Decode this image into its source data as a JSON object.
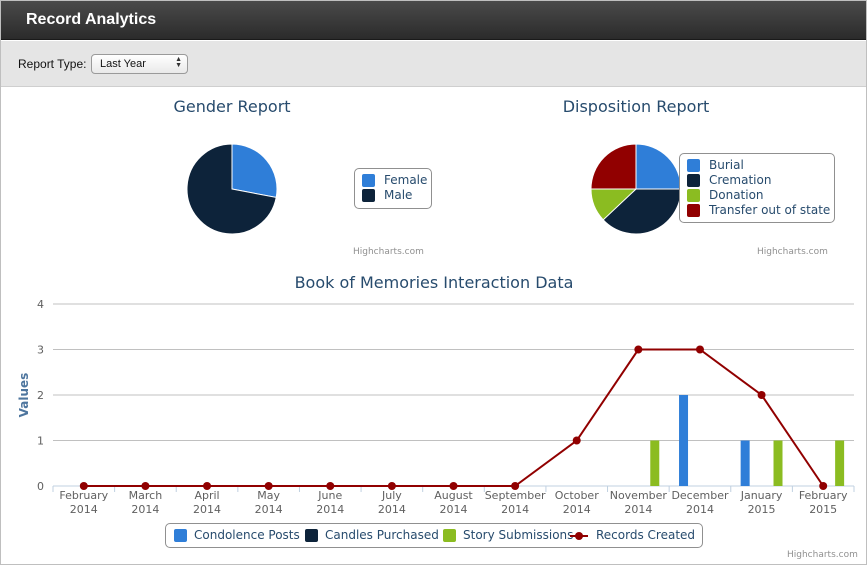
{
  "window": {
    "title": "Record Analytics"
  },
  "toolbar": {
    "report_type_label": "Report Type:",
    "report_type_value": "Last Year"
  },
  "gender_chart": {
    "title": "Gender Report",
    "credit": "Highcharts.com",
    "chart_data": {
      "type": "pie",
      "title": "Gender Report",
      "slices": [
        {
          "name": "Female",
          "value": 28,
          "color": "#2f7ed8"
        },
        {
          "name": "Male",
          "value": 72,
          "color": "#0d233a"
        }
      ]
    }
  },
  "disposition_chart": {
    "title": "Disposition Report",
    "credit": "Highcharts.com",
    "chart_data": {
      "type": "pie",
      "title": "Disposition Report",
      "slices": [
        {
          "name": "Burial",
          "value": 25,
          "color": "#2f7ed8"
        },
        {
          "name": "Cremation",
          "value": 38,
          "color": "#0d233a"
        },
        {
          "name": "Donation",
          "value": 12,
          "color": "#8bbc21"
        },
        {
          "name": "Transfer out of state",
          "value": 25,
          "color": "#910000"
        }
      ]
    }
  },
  "interaction_chart": {
    "title": "Book of Memories Interaction Data",
    "credit": "Highcharts.com",
    "chart_data": {
      "type": "bar",
      "title": "Book of Memories Interaction Data",
      "ylabel": "Values",
      "ylim": [
        0,
        4
      ],
      "yticks": [
        "0",
        "1",
        "2",
        "3",
        "4"
      ],
      "categories": [
        [
          "February",
          "2014"
        ],
        [
          "March",
          "2014"
        ],
        [
          "April",
          "2014"
        ],
        [
          "May",
          "2014"
        ],
        [
          "June",
          "2014"
        ],
        [
          "July",
          "2014"
        ],
        [
          "August",
          "2014"
        ],
        [
          "September",
          "2014"
        ],
        [
          "October",
          "2014"
        ],
        [
          "November",
          "2014"
        ],
        [
          "December",
          "2014"
        ],
        [
          "January",
          "2015"
        ],
        [
          "February",
          "2015"
        ]
      ],
      "series": [
        {
          "name": "Condolence Posts",
          "type": "column",
          "color": "#2f7ed8",
          "values": [
            0,
            0,
            0,
            0,
            0,
            0,
            0,
            0,
            0,
            0,
            2,
            1,
            0
          ]
        },
        {
          "name": "Candles Purchased",
          "type": "column",
          "color": "#0d233a",
          "values": [
            0,
            0,
            0,
            0,
            0,
            0,
            0,
            0,
            0,
            0,
            0,
            0,
            0
          ]
        },
        {
          "name": "Story Submissions",
          "type": "column",
          "color": "#8bbc21",
          "values": [
            0,
            0,
            0,
            0,
            0,
            0,
            0,
            0,
            0,
            1,
            0,
            1,
            1
          ]
        },
        {
          "name": "Records Created",
          "type": "line",
          "color": "#910000",
          "values": [
            0,
            0,
            0,
            0,
            0,
            0,
            0,
            0,
            1,
            3,
            3,
            2,
            0
          ]
        }
      ]
    }
  }
}
